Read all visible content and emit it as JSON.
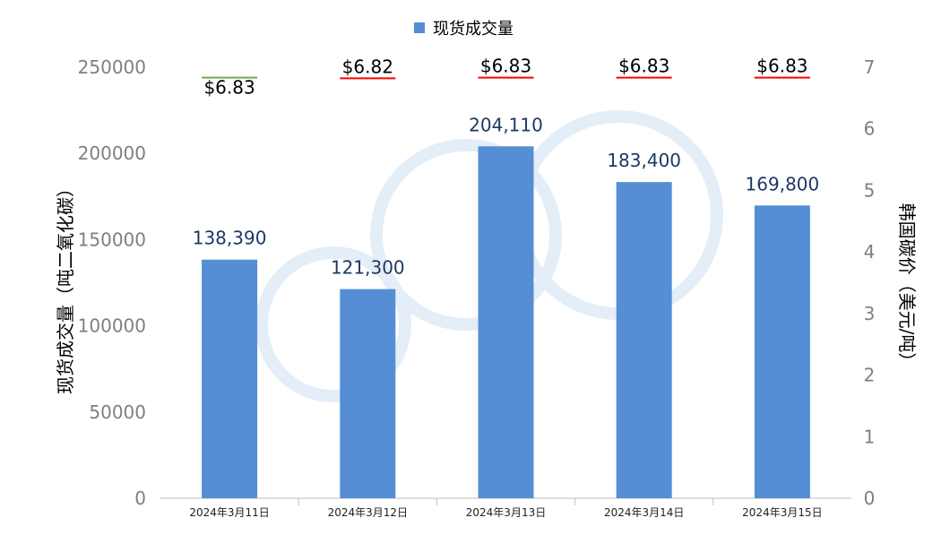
{
  "chart_data": {
    "type": "bar",
    "categories": [
      "2024年3月11日",
      "2024年3月12日",
      "2024年3月13日",
      "2024年3月14日",
      "2024年3月15日"
    ],
    "series": [
      {
        "name": "现货成交量",
        "axis": "left",
        "color": "#558ed5",
        "values": [
          138390,
          121300,
          204110,
          183400,
          169800
        ],
        "data_labels": [
          "138,390",
          "121,300",
          "204,110",
          "183,400",
          "169,800"
        ]
      },
      {
        "axis": "right",
        "marker": "dash",
        "values": [
          6.83,
          6.82,
          6.83,
          6.83,
          6.83
        ],
        "data_labels": [
          "$6.83",
          "$6.82",
          "$6.83",
          "$6.83",
          "$6.83"
        ],
        "marker_colors": [
          "#70ad47",
          "#ff0000",
          "#ff0000",
          "#ff0000",
          "#ff0000"
        ]
      }
    ],
    "ylabel": "现货成交量（吨二氧化碳）",
    "ylabel_right": "韩国碳价（美元/吨）",
    "ylim": [
      0,
      250000
    ],
    "y_ticks": [
      "0",
      "50000",
      "100000",
      "150000",
      "200000",
      "250000"
    ],
    "ylim_right": [
      0,
      7
    ],
    "y_ticks_right": [
      "0",
      "1",
      "2",
      "3",
      "4",
      "5",
      "6",
      "7"
    ],
    "legend_position": "top-center",
    "grid": false
  }
}
